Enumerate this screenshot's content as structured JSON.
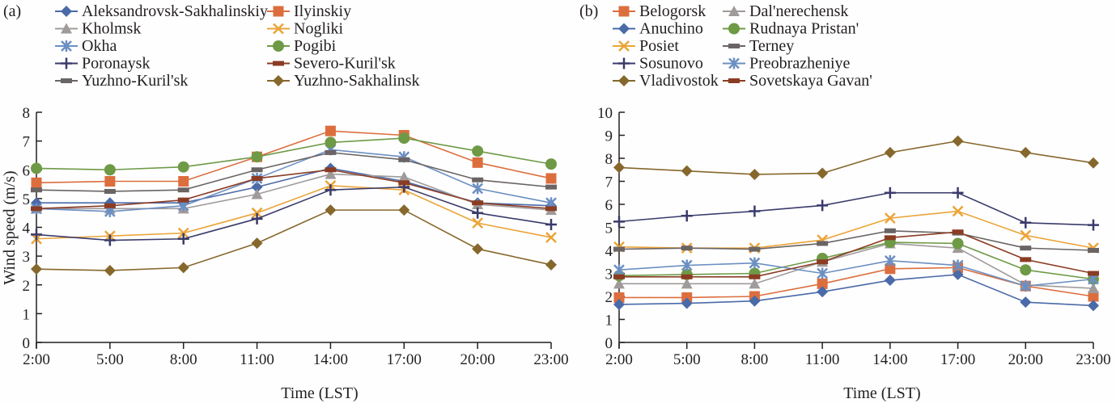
{
  "chart_data": [
    {
      "panel_label": "(a)",
      "type": "line",
      "title": "",
      "xlabel": "Time (LST)",
      "ylabel": "Wind speed (m/s)",
      "categories": [
        "2:00",
        "5:00",
        "8:00",
        "11:00",
        "14:00",
        "17:00",
        "20:00",
        "23:00"
      ],
      "ylim": [
        0,
        8
      ],
      "yticks": [
        0,
        1,
        2,
        3,
        4,
        5,
        6,
        7,
        8
      ],
      "grid": false,
      "legend_position": "top",
      "series": [
        {
          "name": "Aleksandrovsk-Sakhalinskiy",
          "color": "#4a6aa8",
          "marker": "diamond",
          "values": [
            4.85,
            4.85,
            4.85,
            5.4,
            6.05,
            5.6,
            4.85,
            4.75
          ]
        },
        {
          "name": "Ilyinskiy",
          "color": "#dc6e3e",
          "marker": "square",
          "values": [
            5.55,
            5.6,
            5.6,
            6.45,
            7.35,
            7.2,
            6.25,
            5.7
          ]
        },
        {
          "name": "Kholmsk",
          "color": "#a09b9b",
          "marker": "triangle",
          "values": [
            4.65,
            4.65,
            4.65,
            5.15,
            5.85,
            5.75,
            4.8,
            4.6
          ]
        },
        {
          "name": "Nogliki",
          "color": "#eba439",
          "marker": "x",
          "values": [
            3.6,
            3.7,
            3.8,
            4.5,
            5.45,
            5.3,
            4.15,
            3.65
          ]
        },
        {
          "name": "Okha",
          "color": "#6b8fc2",
          "marker": "asterisk",
          "values": [
            4.65,
            4.55,
            4.75,
            5.7,
            6.7,
            6.45,
            5.35,
            4.85
          ]
        },
        {
          "name": "Pogibi",
          "color": "#6e9a46",
          "marker": "circle",
          "values": [
            6.05,
            6.0,
            6.1,
            6.45,
            6.95,
            7.1,
            6.65,
            6.2
          ]
        },
        {
          "name": "Poronaysk",
          "color": "#3a3b6b",
          "marker": "plus",
          "values": [
            3.75,
            3.55,
            3.6,
            4.3,
            5.3,
            5.4,
            4.5,
            4.1
          ]
        },
        {
          "name": "Severo-Kuril'sk",
          "color": "#8b3c24",
          "marker": "dash",
          "values": [
            4.65,
            4.75,
            4.95,
            5.7,
            6.0,
            5.55,
            4.85,
            4.65
          ]
        },
        {
          "name": "Yuzhno-Kuril'sk",
          "color": "#6a6464",
          "marker": "dash",
          "values": [
            5.3,
            5.25,
            5.3,
            6.0,
            6.6,
            6.35,
            5.65,
            5.4
          ]
        },
        {
          "name": "Yuzhno-Sakhalinsk",
          "color": "#86672c",
          "marker": "diamond",
          "values": [
            2.55,
            2.5,
            2.6,
            3.45,
            4.6,
            4.6,
            3.25,
            2.7
          ]
        }
      ]
    },
    {
      "panel_label": "(b)",
      "type": "line",
      "title": "",
      "xlabel": "Time (LST)",
      "ylabel": "",
      "categories": [
        "2:00",
        "5:00",
        "8:00",
        "11:00",
        "14:00",
        "17:00",
        "20:00",
        "23:00"
      ],
      "ylim": [
        0,
        10
      ],
      "yticks": [
        0,
        1,
        2,
        3,
        4,
        5,
        6,
        7,
        8,
        9,
        10
      ],
      "grid": false,
      "legend_position": "top",
      "series": [
        {
          "name": "Belogorsk",
          "color": "#dc6e3e",
          "marker": "square",
          "values": [
            1.95,
            1.95,
            2.0,
            2.55,
            3.2,
            3.25,
            2.45,
            2.0
          ]
        },
        {
          "name": "Dal'nerechensk",
          "color": "#a09b9b",
          "marker": "triangle",
          "values": [
            2.55,
            2.55,
            2.55,
            3.5,
            4.3,
            4.1,
            2.5,
            2.35
          ]
        },
        {
          "name": "Anuchino",
          "color": "#4a6aa8",
          "marker": "diamond",
          "values": [
            1.65,
            1.7,
            1.8,
            2.2,
            2.7,
            2.95,
            1.75,
            1.6
          ]
        },
        {
          "name": "Rudnaya Pristan'",
          "color": "#6e9a46",
          "marker": "circle",
          "values": [
            2.9,
            2.95,
            3.0,
            3.65,
            4.35,
            4.3,
            3.15,
            2.75
          ]
        },
        {
          "name": "Posiet",
          "color": "#eba439",
          "marker": "x",
          "values": [
            4.15,
            4.1,
            4.1,
            4.45,
            5.4,
            5.7,
            4.65,
            4.1
          ]
        },
        {
          "name": "Terney",
          "color": "#6a6464",
          "marker": "dash",
          "values": [
            4.05,
            4.1,
            4.05,
            4.3,
            4.85,
            4.75,
            4.1,
            4.0
          ]
        },
        {
          "name": "Sosunovo",
          "color": "#3a3b6b",
          "marker": "plus",
          "values": [
            5.25,
            5.5,
            5.7,
            5.95,
            6.5,
            6.5,
            5.2,
            5.1
          ]
        },
        {
          "name": "Preobrazheniye",
          "color": "#6b8fc2",
          "marker": "asterisk",
          "values": [
            3.15,
            3.35,
            3.45,
            3.0,
            3.55,
            3.35,
            2.45,
            2.75
          ]
        },
        {
          "name": "Vladivostok",
          "color": "#86672c",
          "marker": "diamond",
          "values": [
            7.6,
            7.45,
            7.3,
            7.35,
            8.25,
            8.75,
            8.25,
            7.8
          ]
        },
        {
          "name": "Sovetskaya Gavan'",
          "color": "#8b3c24",
          "marker": "dash",
          "values": [
            2.85,
            2.85,
            2.85,
            3.5,
            4.55,
            4.8,
            3.6,
            3.0
          ]
        }
      ]
    }
  ]
}
